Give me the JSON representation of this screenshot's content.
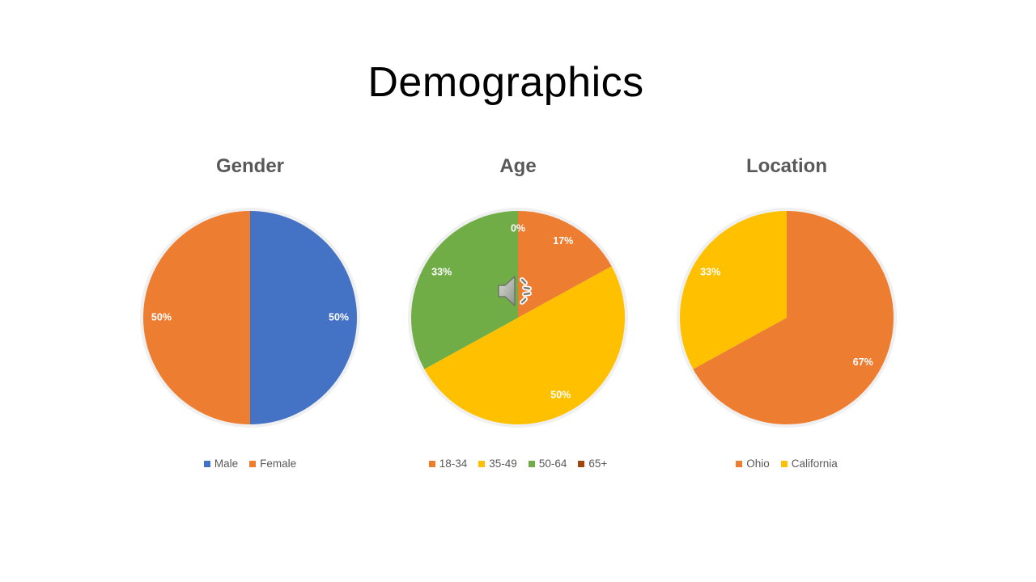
{
  "slide": {
    "title": "Demographics"
  },
  "chart_data": [
    {
      "type": "pie",
      "title": "Gender",
      "categories": [
        "Male",
        "Female"
      ],
      "values": [
        50,
        50
      ],
      "labels": [
        "50%",
        "50%"
      ],
      "colors": [
        "#4472C4",
        "#ED7D31"
      ],
      "legend": "bottom"
    },
    {
      "type": "pie",
      "title": "Age",
      "categories": [
        "18-34",
        "35-49",
        "50-64",
        "65+"
      ],
      "values": [
        17,
        50,
        33,
        0
      ],
      "labels": [
        "17%",
        "50%",
        "33%",
        "0%"
      ],
      "colors": [
        "#ED7D31",
        "#FFC000",
        "#70AD47",
        "#9E480E"
      ],
      "legend": "bottom"
    },
    {
      "type": "pie",
      "title": "Location",
      "categories": [
        "Ohio",
        "California"
      ],
      "values": [
        67,
        33
      ],
      "labels": [
        "67%",
        "33%"
      ],
      "colors": [
        "#ED7D31",
        "#FFC000"
      ],
      "legend": "bottom"
    }
  ],
  "icons": {
    "audio": "speaker-icon"
  }
}
